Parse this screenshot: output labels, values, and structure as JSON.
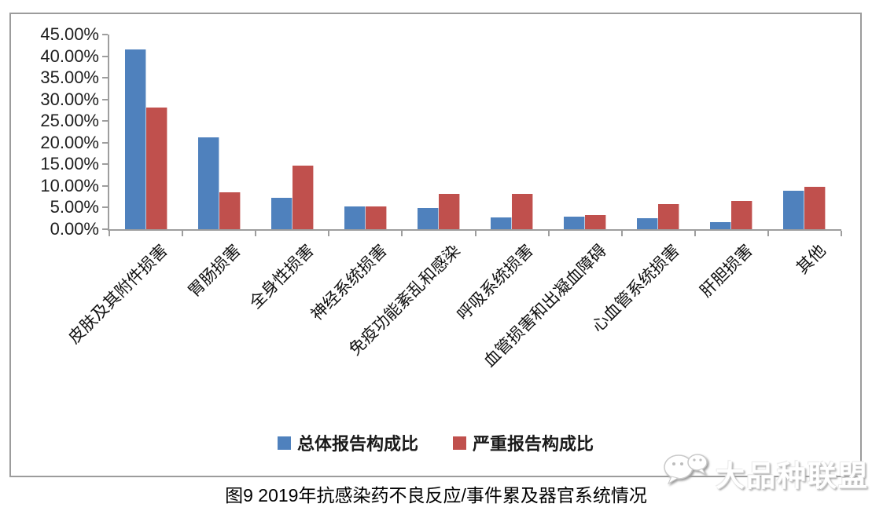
{
  "caption": "图9 2019年抗感染药不良反应/事件累及器官系统情况",
  "watermark": {
    "text": "大品种联盟",
    "icon": "wechat-chat-bubbles-icon"
  },
  "legend": [
    {
      "label": "总体报告构成比",
      "color": "#4F81BD"
    },
    {
      "label": "严重报告构成比",
      "color": "#C0504D"
    }
  ],
  "colors": {
    "series_overall": "#4F81BD",
    "series_serious": "#C0504D",
    "axis": "#9e9e9e",
    "text": "#1a1a1a"
  },
  "chart_data": {
    "type": "bar",
    "categories": [
      "皮肤及其附件损害",
      "胃肠损害",
      "全身性损害",
      "神经系统损害",
      "免疫功能紊乱和感染",
      "呼吸系统损害",
      "血管损害和出凝血障碍",
      "心血管系统损害",
      "肝胆损害",
      "其他"
    ],
    "series": [
      {
        "name": "总体报告构成比",
        "color": "#4F81BD",
        "values": [
          41.5,
          21.3,
          7.3,
          5.3,
          4.9,
          2.7,
          2.9,
          2.5,
          1.6,
          8.9
        ]
      },
      {
        "name": "严重报告构成比",
        "color": "#C0504D",
        "values": [
          28.2,
          8.5,
          14.7,
          5.3,
          8.1,
          8.2,
          3.2,
          5.8,
          6.5,
          9.8
        ]
      }
    ],
    "ylabel": "",
    "xlabel": "",
    "ylim": [
      0,
      45
    ],
    "y_tick_step": 5,
    "y_tick_labels": [
      "0.00%",
      "5.00%",
      "10.00%",
      "15.00%",
      "20.00%",
      "25.00%",
      "30.00%",
      "35.00%",
      "40.00%",
      "45.00%"
    ],
    "grid": false,
    "legend_position": "bottom",
    "x_label_rotation_deg": 45
  }
}
